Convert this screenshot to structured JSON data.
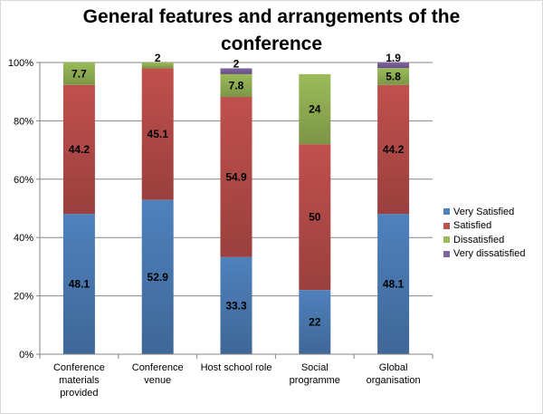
{
  "chart_data": {
    "type": "bar",
    "stacked": true,
    "percent_stacked": true,
    "title": "General features and arrangements of the conference",
    "categories": [
      "Conference materials provided",
      "Conference venue",
      "Host school role",
      "Social programme",
      "Global organisation"
    ],
    "category_lines": [
      [
        "Conference",
        "materials",
        "provided"
      ],
      [
        "Conference",
        "venue"
      ],
      [
        "Host school role"
      ],
      [
        "Social",
        "programme"
      ],
      [
        "Global",
        "organisation"
      ]
    ],
    "series": [
      {
        "name": "Very Satisfied",
        "values": [
          48.1,
          52.9,
          33.3,
          22,
          48.1
        ],
        "labels": [
          "48.1",
          "52.9",
          "33.3",
          "22",
          "48.1"
        ],
        "color": "#4f81bd"
      },
      {
        "name": "Satisfied",
        "values": [
          44.2,
          45.1,
          54.9,
          50,
          44.2
        ],
        "labels": [
          "44.2",
          "45.1",
          "54.9",
          "50",
          "44.2"
        ],
        "color": "#c0504d"
      },
      {
        "name": "Dissatisfied",
        "values": [
          7.7,
          2,
          7.8,
          24,
          5.8
        ],
        "labels": [
          "7.7",
          "2",
          "7.8",
          "24",
          "5.8"
        ],
        "color": "#9bbb59"
      },
      {
        "name": "Very dissatisfied",
        "values": [
          0,
          0,
          2,
          0,
          1.9
        ],
        "labels": [
          "",
          "",
          "2",
          "",
          "1.9"
        ],
        "color": "#8064a2"
      }
    ],
    "y_ticks": [
      "0%",
      "20%",
      "40%",
      "60%",
      "80%",
      "100%"
    ],
    "ylim": [
      0,
      100
    ],
    "grid": true,
    "legend_position": "right"
  }
}
